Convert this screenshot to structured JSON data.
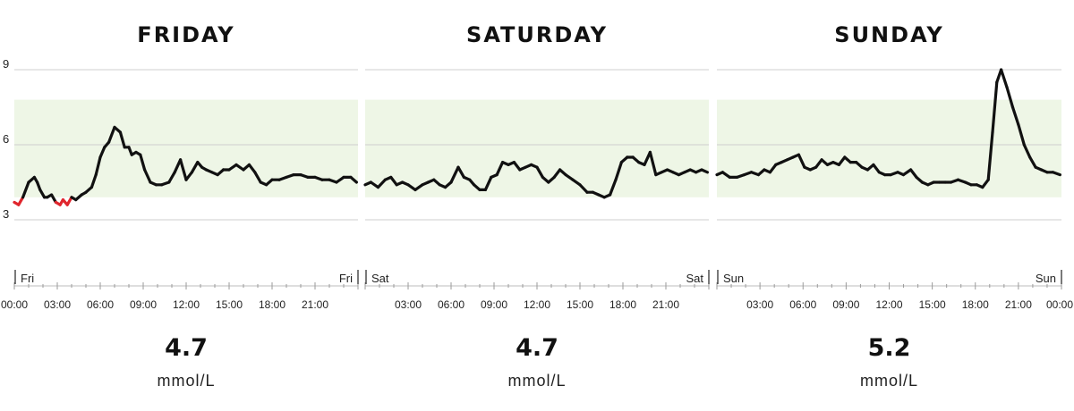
{
  "chart_data": {
    "type": "line",
    "unit": "mmol/L",
    "ylim": [
      3,
      9
    ],
    "yticks": [
      3,
      6,
      9
    ],
    "target_range": [
      3.9,
      7.8
    ],
    "target_color": "#eef6e6",
    "line_color": "#111111",
    "low_color": "#e0262d",
    "low_threshold": 3.9,
    "grid": true,
    "hour_ticks": [
      0,
      3,
      6,
      9,
      12,
      15,
      18,
      21,
      24
    ],
    "panels": [
      {
        "title": "FRIDAY",
        "day_label": "Fri",
        "end_label": "Fri",
        "average": "4.7",
        "unit": "mmol/L",
        "tick_labels": [
          "00:00",
          "03:00",
          "06:00",
          "09:00",
          "12:00",
          "15:00",
          "18:00",
          "21:00"
        ],
        "x": [
          0,
          0.3,
          0.6,
          1.0,
          1.4,
          1.6,
          1.8,
          2.1,
          2.3,
          2.6,
          2.9,
          3.2,
          3.4,
          3.7,
          4.0,
          4.3,
          4.7,
          5.0,
          5.4,
          5.7,
          6.0,
          6.3,
          6.6,
          7.0,
          7.4,
          7.7,
          8.0,
          8.2,
          8.5,
          8.8,
          9.1,
          9.5,
          9.9,
          10.3,
          10.8,
          11.2,
          11.6,
          12.0,
          12.4,
          12.8,
          13.1,
          13.4,
          13.8,
          14.2,
          14.6,
          15.0,
          15.5,
          16.0,
          16.4,
          16.8,
          17.2,
          17.6,
          18.0,
          18.5,
          19.0,
          19.5,
          20.0,
          20.5,
          21.0,
          21.5,
          22.0,
          22.5,
          23.0,
          23.5,
          23.9
        ],
        "values": [
          3.7,
          3.6,
          3.9,
          4.5,
          4.7,
          4.5,
          4.2,
          3.9,
          3.9,
          4.0,
          3.7,
          3.6,
          3.8,
          3.6,
          3.9,
          3.8,
          4.0,
          4.1,
          4.3,
          4.8,
          5.5,
          5.9,
          6.1,
          6.7,
          6.5,
          5.9,
          5.9,
          5.6,
          5.7,
          5.6,
          5.0,
          4.5,
          4.4,
          4.4,
          4.5,
          4.9,
          5.4,
          4.6,
          4.9,
          5.3,
          5.1,
          5.0,
          4.9,
          4.8,
          5.0,
          5.0,
          5.2,
          5.0,
          5.2,
          4.9,
          4.5,
          4.4,
          4.6,
          4.6,
          4.7,
          4.8,
          4.8,
          4.7,
          4.7,
          4.6,
          4.6,
          4.5,
          4.7,
          4.7,
          4.5
        ]
      },
      {
        "title": "SATURDAY",
        "day_label": "Sat",
        "end_label": "Sat",
        "average": "4.7",
        "unit": "mmol/L",
        "tick_labels": [
          "03:00",
          "06:00",
          "09:00",
          "12:00",
          "15:00",
          "18:00",
          "21:00"
        ],
        "x": [
          0,
          0.4,
          0.9,
          1.4,
          1.8,
          2.2,
          2.6,
          3.0,
          3.5,
          4.0,
          4.4,
          4.8,
          5.2,
          5.6,
          6.0,
          6.5,
          6.9,
          7.3,
          7.6,
          8.0,
          8.4,
          8.8,
          9.2,
          9.6,
          10.0,
          10.4,
          10.8,
          11.2,
          11.6,
          12.0,
          12.4,
          12.8,
          13.2,
          13.6,
          14.0,
          14.5,
          15.0,
          15.5,
          15.9,
          16.3,
          16.7,
          17.1,
          17.5,
          17.9,
          18.3,
          18.7,
          19.1,
          19.5,
          19.9,
          20.3,
          20.7,
          21.1,
          21.5,
          21.9,
          22.3,
          22.7,
          23.1,
          23.5,
          23.9
        ],
        "values": [
          4.4,
          4.5,
          4.3,
          4.6,
          4.7,
          4.4,
          4.5,
          4.4,
          4.2,
          4.4,
          4.5,
          4.6,
          4.4,
          4.3,
          4.5,
          5.1,
          4.7,
          4.6,
          4.4,
          4.2,
          4.2,
          4.7,
          4.8,
          5.3,
          5.2,
          5.3,
          5.0,
          5.1,
          5.2,
          5.1,
          4.7,
          4.5,
          4.7,
          5.0,
          4.8,
          4.6,
          4.4,
          4.1,
          4.1,
          4.0,
          3.9,
          4.0,
          4.6,
          5.3,
          5.5,
          5.5,
          5.3,
          5.2,
          5.7,
          4.8,
          4.9,
          5.0,
          4.9,
          4.8,
          4.9,
          5.0,
          4.9,
          5.0,
          4.9
        ]
      },
      {
        "title": "SUNDAY",
        "day_label": "Sun",
        "end_label": "Sun",
        "average": "5.2",
        "unit": "mmol/L",
        "tick_labels": [
          "03:00",
          "06:00",
          "09:00",
          "12:00",
          "15:00",
          "18:00",
          "21:00",
          "00:00"
        ],
        "x": [
          0,
          0.4,
          0.9,
          1.4,
          1.9,
          2.4,
          2.9,
          3.3,
          3.7,
          4.1,
          4.5,
          4.9,
          5.3,
          5.7,
          6.1,
          6.5,
          6.9,
          7.3,
          7.7,
          8.1,
          8.5,
          8.9,
          9.3,
          9.7,
          10.1,
          10.5,
          10.9,
          11.3,
          11.7,
          12.1,
          12.6,
          13.0,
          13.5,
          13.9,
          14.3,
          14.7,
          15.1,
          15.5,
          15.9,
          16.3,
          16.8,
          17.3,
          17.7,
          18.1,
          18.5,
          18.9,
          19.2,
          19.5,
          19.8,
          20.2,
          20.6,
          21.0,
          21.4,
          21.8,
          22.2,
          22.6,
          23.0,
          23.4,
          23.9
        ],
        "values": [
          4.8,
          4.9,
          4.7,
          4.7,
          4.8,
          4.9,
          4.8,
          5.0,
          4.9,
          5.2,
          5.3,
          5.4,
          5.5,
          5.6,
          5.1,
          5.0,
          5.1,
          5.4,
          5.2,
          5.3,
          5.2,
          5.5,
          5.3,
          5.3,
          5.1,
          5.0,
          5.2,
          4.9,
          4.8,
          4.8,
          4.9,
          4.8,
          5.0,
          4.7,
          4.5,
          4.4,
          4.5,
          4.5,
          4.5,
          4.5,
          4.6,
          4.5,
          4.4,
          4.4,
          4.3,
          4.6,
          6.5,
          8.5,
          9.0,
          8.3,
          7.5,
          6.8,
          6.0,
          5.5,
          5.1,
          5.0,
          4.9,
          4.9,
          4.8
        ]
      }
    ]
  }
}
